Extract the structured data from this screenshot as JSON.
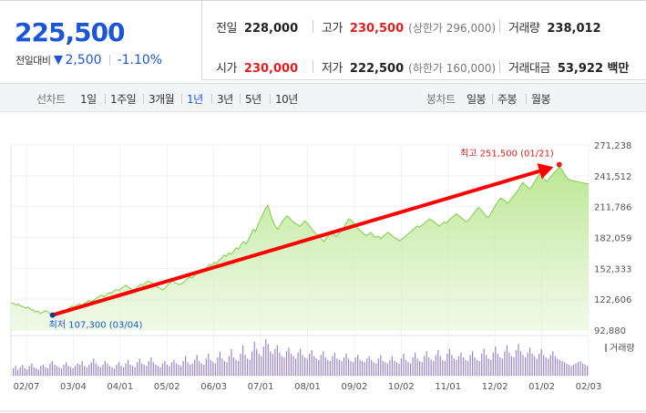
{
  "summary": {
    "price": "225,500",
    "change_label": "전일대비",
    "change_amount": "2,500",
    "change_percent": "-1.10%",
    "stats": [
      {
        "label": "전일",
        "value": "228,000",
        "color": "normal",
        "sub": ""
      },
      {
        "label": "고가",
        "value": "230,500",
        "color": "red",
        "sub": "(상한가 296,000)"
      },
      {
        "label": "거래량",
        "value": "238,012",
        "color": "normal",
        "sub": ""
      },
      {
        "label": "시가",
        "value": "230,000",
        "color": "red",
        "sub": ""
      },
      {
        "label": "저가",
        "value": "222,500",
        "color": "normal",
        "sub": "(하한가 160,000)"
      },
      {
        "label": "거래대금",
        "value": "53,922 백만",
        "color": "normal",
        "sub": ""
      }
    ]
  },
  "period": {
    "title": "선차트",
    "items": [
      "1일",
      "1주일",
      "3개월",
      "1년",
      "3년",
      "5년",
      "10년"
    ],
    "active": "1년"
  },
  "candle": {
    "title": "봉차트",
    "items": [
      "일봉",
      "주봉",
      "월봉"
    ]
  },
  "colors": {
    "price_blue": "#1a56d6",
    "red": "#e02020",
    "line_green": "#8dd35f",
    "volume_purple": "#9a86c9",
    "arrow_red": "#ff0000"
  },
  "chart_data": {
    "type": "area",
    "y_ticks": [
      "271,238",
      "241,512",
      "211,786",
      "182,059",
      "152,333",
      "122,606",
      "92,880"
    ],
    "ylim": [
      92880,
      271238
    ],
    "x_ticks": [
      "02/07",
      "03/04",
      "04/01",
      "05/02",
      "06/03",
      "07/01",
      "08/01",
      "09/02",
      "10/02",
      "11/01",
      "12/02",
      "01/02",
      "02/03"
    ],
    "series": [
      {
        "values": [
          119000,
          118500,
          117000,
          118000,
          116000,
          115500,
          114000,
          115000,
          113000,
          112000,
          110500,
          111000,
          109000,
          110000,
          111500,
          110500,
          108500,
          107300,
          108000,
          109500,
          110000,
          112000,
          111000,
          113000,
          114500,
          116000,
          115000,
          117000,
          118000,
          116500,
          118500,
          120000,
          121500,
          120000,
          122000,
          123500,
          125000,
          126500,
          125000,
          127000,
          129000,
          128000,
          130500,
          132000,
          131000,
          133000,
          134500,
          136000,
          134000,
          132500,
          131000,
          133000,
          135000,
          137000,
          136000,
          138500,
          140000,
          139000,
          137500,
          136000,
          134000,
          133000,
          131500,
          133500,
          136000,
          138000,
          140500,
          139000,
          137500,
          136500,
          138000,
          140000,
          142000,
          144000,
          143000,
          145500,
          148000,
          150000,
          149000,
          151500,
          153000,
          156000,
          155000,
          158000,
          157000,
          160000,
          162000,
          165000,
          164000,
          167000,
          166000,
          169000,
          172000,
          171000,
          175000,
          178000,
          176000,
          180000,
          185000,
          190000,
          188000,
          195000,
          200000,
          205000,
          210000,
          213000,
          205000,
          198000,
          193000,
          190000,
          194000,
          198000,
          201000,
          203000,
          200000,
          198000,
          196000,
          194500,
          193000,
          195000,
          198000,
          196000,
          193000,
          190000,
          187000,
          185000,
          183000,
          180000,
          178000,
          182000,
          185000,
          188000,
          185000,
          183000,
          186000,
          189000,
          192000,
          196000,
          200000,
          199000,
          196000,
          193000,
          190000,
          188000,
          186000,
          184000,
          185000,
          187000,
          184000,
          182000,
          183500,
          181000,
          183000,
          185000,
          187000,
          185500,
          183000,
          181500,
          180000,
          179000,
          181000,
          183000,
          185000,
          187000,
          189000,
          191000,
          193000,
          192000,
          194000,
          196000,
          198000,
          200000,
          198500,
          197000,
          195000,
          193000,
          195000,
          197000,
          196000,
          199000,
          201000,
          203000,
          205000,
          203000,
          201000,
          199000,
          197000,
          199000,
          202000,
          205000,
          208000,
          211000,
          209000,
          206000,
          203000,
          201000,
          205000,
          209000,
          213000,
          217000,
          220000,
          219000,
          217000,
          215000,
          218000,
          221000,
          224000,
          227000,
          231000,
          235000,
          233000,
          231000,
          229000,
          232000,
          236000,
          240000,
          243000,
          241000,
          238000,
          236000,
          239000,
          242000,
          245000,
          247000,
          250000,
          248000,
          244000,
          240000,
          238000,
          237000,
          236500,
          236000,
          235500,
          235000,
          234500,
          234000,
          233500
        ]
      }
    ],
    "volume": {
      "label": "거래량",
      "values": [
        6,
        8,
        5,
        7,
        9,
        6,
        5,
        8,
        10,
        7,
        6,
        5,
        8,
        9,
        7,
        6,
        10,
        12,
        9,
        8,
        7,
        6,
        9,
        11,
        8,
        7,
        6,
        8,
        10,
        9,
        12,
        8,
        7,
        9,
        11,
        14,
        10,
        8,
        7,
        9,
        12,
        10,
        8,
        7,
        6,
        9,
        11,
        8,
        7,
        10,
        13,
        9,
        8,
        7,
        11,
        14,
        10,
        9,
        8,
        12,
        15,
        11,
        9,
        8,
        7,
        10,
        12,
        9,
        8,
        11,
        13,
        10,
        9,
        8,
        12,
        16,
        11,
        9,
        10,
        13,
        17,
        12,
        10,
        9,
        14,
        18,
        13,
        11,
        10,
        15,
        20,
        14,
        12,
        11,
        16,
        22,
        15,
        13,
        12,
        18,
        25,
        17,
        14,
        13,
        20,
        28,
        22,
        18,
        16,
        24,
        30,
        26,
        20,
        18,
        22,
        25,
        19,
        16,
        15,
        20,
        23,
        18,
        16,
        14,
        19,
        22,
        17,
        15,
        14,
        18,
        21,
        16,
        14,
        13,
        17,
        20,
        15,
        13,
        12,
        16,
        19,
        14,
        13,
        12,
        15,
        18,
        14,
        12,
        11,
        15,
        17,
        13,
        12,
        11,
        14,
        16,
        13,
        11,
        10,
        14,
        17,
        12,
        11,
        10,
        13,
        16,
        12,
        11,
        10,
        14,
        18,
        13,
        11,
        10,
        15,
        19,
        14,
        12,
        11,
        16,
        20,
        15,
        13,
        12,
        17,
        21,
        16,
        13,
        12,
        18,
        22,
        17,
        14,
        13,
        16,
        19,
        15,
        13,
        12,
        17,
        20,
        15,
        13,
        12,
        18,
        22,
        17,
        14,
        13,
        19,
        24,
        18,
        15,
        14,
        20,
        25,
        19,
        16,
        15,
        21,
        26,
        20,
        17,
        15,
        19,
        23,
        18,
        16,
        14,
        18,
        22,
        17,
        15,
        14,
        17,
        20,
        16,
        14,
        13,
        12,
        11,
        10,
        9,
        8,
        9,
        10,
        11,
        12,
        10,
        9,
        8
      ]
    },
    "annotations": [
      {
        "type": "max",
        "text": "최고 251,500 (01/21)",
        "value": 251500
      },
      {
        "type": "min",
        "text": "최저 107,300 (03/04)",
        "value": 107300
      }
    ]
  }
}
